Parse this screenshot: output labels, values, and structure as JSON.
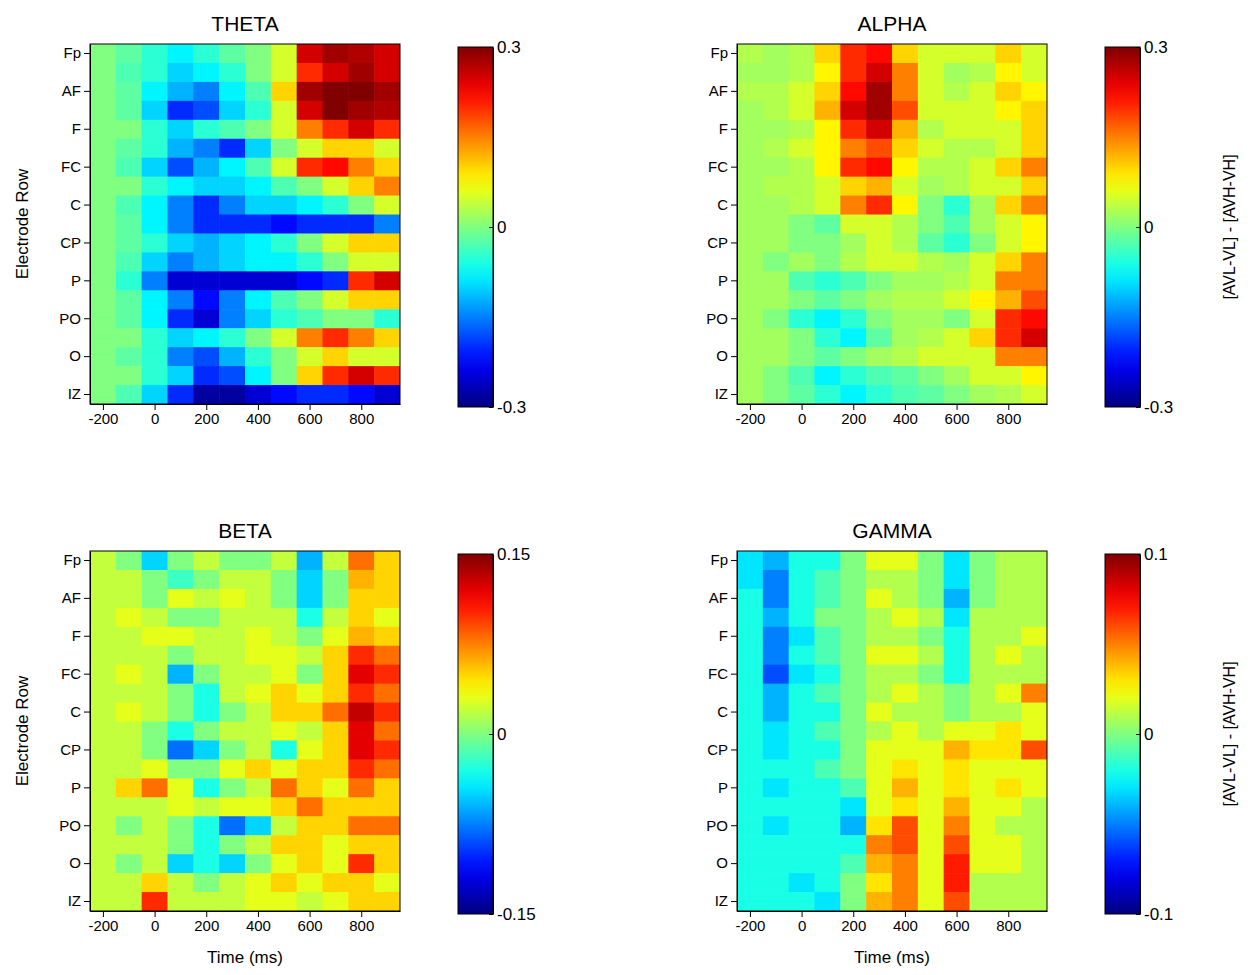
{
  "chart_data": [
    {
      "type": "heatmap",
      "title": "THETA",
      "ylabel": "Electrode Row",
      "x": [
        -200,
        -100,
        0,
        100,
        200,
        300,
        400,
        500,
        600,
        700,
        800,
        900
      ],
      "y": [
        "Fp",
        null,
        "AF",
        null,
        "F",
        null,
        "FC",
        null,
        "C",
        null,
        "CP",
        null,
        "P",
        null,
        "PO",
        null,
        "O",
        null,
        "IZ"
      ],
      "xlim": [
        -250,
        950
      ],
      "xticks": [
        -200,
        0,
        200,
        400,
        600,
        800
      ],
      "color_range": [
        -0.3,
        0.3
      ],
      "color_ticks": [
        -0.3,
        0,
        0.3
      ],
      "cells": [
        [
          0,
          -0.02,
          -0.05,
          -0.08,
          -0.05,
          -0.02,
          0,
          0.05,
          0.25,
          0.28,
          0.27,
          0.25
        ],
        [
          0,
          -0.03,
          -0.05,
          -0.1,
          -0.08,
          -0.05,
          0,
          0.05,
          0.2,
          0.25,
          0.28,
          0.25
        ],
        [
          0,
          -0.02,
          -0.08,
          -0.12,
          -0.15,
          -0.08,
          -0.03,
          0.1,
          0.28,
          0.3,
          0.3,
          0.28
        ],
        [
          0,
          -0.02,
          -0.1,
          -0.2,
          -0.18,
          -0.1,
          -0.05,
          0.05,
          0.25,
          0.3,
          0.28,
          0.27
        ],
        [
          0,
          0,
          -0.05,
          -0.1,
          -0.05,
          -0.03,
          0,
          0.05,
          0.15,
          0.2,
          0.25,
          0.2
        ],
        [
          0,
          -0.02,
          -0.05,
          -0.12,
          -0.15,
          -0.2,
          -0.1,
          0,
          0.05,
          0.1,
          0.1,
          0.05
        ],
        [
          0,
          -0.03,
          -0.1,
          -0.18,
          -0.12,
          -0.08,
          -0.03,
          0.05,
          0.2,
          0.22,
          0.15,
          0.1
        ],
        [
          0,
          0,
          -0.05,
          -0.08,
          -0.1,
          -0.1,
          -0.08,
          -0.03,
          0,
          0.05,
          0.1,
          0.15
        ],
        [
          0,
          -0.03,
          -0.08,
          -0.15,
          -0.2,
          -0.15,
          -0.1,
          -0.1,
          -0.08,
          -0.05,
          0,
          0.05
        ],
        [
          0,
          -0.02,
          -0.08,
          -0.15,
          -0.2,
          -0.2,
          -0.2,
          -0.22,
          -0.2,
          -0.2,
          -0.2,
          -0.15
        ],
        [
          0,
          -0.02,
          -0.05,
          -0.1,
          -0.12,
          -0.1,
          -0.08,
          -0.05,
          0,
          0.05,
          0.1,
          0.1
        ],
        [
          0,
          -0.03,
          -0.1,
          -0.15,
          -0.12,
          -0.1,
          -0.08,
          -0.08,
          -0.05,
          0,
          0.05,
          0.05
        ],
        [
          0,
          -0.05,
          -0.15,
          -0.25,
          -0.25,
          -0.25,
          -0.25,
          -0.25,
          -0.22,
          -0.2,
          0.2,
          0.25
        ],
        [
          0,
          -0.02,
          -0.08,
          -0.15,
          -0.22,
          -0.15,
          -0.08,
          -0.03,
          0,
          0.05,
          0.1,
          0.1
        ],
        [
          0,
          -0.02,
          -0.08,
          -0.2,
          -0.25,
          -0.15,
          -0.1,
          -0.05,
          -0.03,
          0,
          0,
          -0.05
        ],
        [
          0,
          0,
          -0.05,
          -0.1,
          -0.08,
          -0.05,
          0,
          0.05,
          0.15,
          0.2,
          0.15,
          0.1
        ],
        [
          0,
          -0.02,
          -0.05,
          -0.15,
          -0.18,
          -0.12,
          -0.05,
          0,
          0.05,
          0.1,
          0.05,
          0.05
        ],
        [
          0,
          0,
          -0.05,
          -0.1,
          -0.2,
          -0.18,
          -0.08,
          0,
          0.1,
          0.2,
          0.25,
          0.2
        ],
        [
          0,
          -0.03,
          -0.1,
          -0.2,
          -0.28,
          -0.28,
          -0.25,
          -0.22,
          -0.2,
          -0.2,
          -0.22,
          -0.25
        ]
      ]
    },
    {
      "type": "heatmap",
      "title": "ALPHA",
      "colorbar_label": "[AVL-VL] - [AVH-VH]",
      "x": [
        -200,
        -100,
        0,
        100,
        200,
        300,
        400,
        500,
        600,
        700,
        800,
        900
      ],
      "y": [
        "Fp",
        null,
        "AF",
        null,
        "F",
        null,
        "FC",
        null,
        "C",
        null,
        "CP",
        null,
        "P",
        null,
        "PO",
        null,
        "O",
        null,
        "IZ"
      ],
      "xlim": [
        -250,
        950
      ],
      "xticks": [
        -200,
        0,
        200,
        400,
        600,
        800
      ],
      "color_range": [
        -0.3,
        0.3
      ],
      "color_ticks": [
        -0.3,
        0,
        0.3
      ],
      "cells": [
        [
          0.03,
          0.02,
          0.03,
          0.1,
          0.2,
          0.22,
          0.1,
          0.05,
          0.05,
          0.05,
          0.1,
          0.05
        ],
        [
          0.02,
          0.02,
          0.03,
          0.08,
          0.2,
          0.25,
          0.15,
          0.05,
          0.02,
          0.03,
          0.08,
          0.05
        ],
        [
          0.03,
          0.03,
          0.05,
          0.1,
          0.22,
          0.28,
          0.15,
          0.05,
          0.03,
          0.05,
          0.1,
          0.08
        ],
        [
          0.02,
          0.03,
          0.05,
          0.12,
          0.25,
          0.28,
          0.18,
          0.05,
          0.05,
          0.05,
          0.08,
          0.1
        ],
        [
          0.02,
          0.02,
          0.03,
          0.08,
          0.2,
          0.25,
          0.12,
          0.03,
          0.05,
          0.05,
          0.05,
          0.1
        ],
        [
          0.02,
          0.03,
          0.05,
          0.08,
          0.15,
          0.18,
          0.1,
          0.05,
          0.03,
          0.03,
          0.05,
          0.1
        ],
        [
          0.02,
          0.02,
          0.03,
          0.08,
          0.2,
          0.22,
          0.08,
          0.03,
          0.03,
          0.05,
          0.1,
          0.15
        ],
        [
          0.02,
          0.03,
          0.03,
          0.05,
          0.1,
          0.12,
          0.05,
          0.02,
          0.03,
          0.05,
          0.05,
          0.1
        ],
        [
          0.02,
          0.02,
          0.03,
          0.05,
          0.15,
          0.2,
          0.08,
          0,
          -0.05,
          0.02,
          0.1,
          0.15
        ],
        [
          0.02,
          0.02,
          0,
          -0.02,
          0.05,
          0.05,
          0.03,
          0,
          -0.03,
          0.02,
          0.05,
          0.08
        ],
        [
          0.02,
          0.02,
          0,
          0,
          0.02,
          0.05,
          0.03,
          -0.02,
          -0.05,
          0,
          0.05,
          0.08
        ],
        [
          0.02,
          0,
          0.02,
          0,
          0.03,
          0.05,
          0.05,
          0.03,
          0.02,
          0.05,
          0.1,
          0.15
        ],
        [
          0.02,
          0.02,
          -0.03,
          -0.05,
          -0.03,
          0,
          0.02,
          0.02,
          0.03,
          0.05,
          0.15,
          0.15
        ],
        [
          0.02,
          0.02,
          0,
          -0.02,
          0,
          0.02,
          0.03,
          0.03,
          0.05,
          0.08,
          0.12,
          0.18
        ],
        [
          0.02,
          0,
          -0.05,
          -0.08,
          -0.05,
          0,
          0.02,
          0.02,
          0,
          0.05,
          0.2,
          0.22
        ],
        [
          0.02,
          0.02,
          0,
          -0.05,
          -0.08,
          -0.02,
          0.02,
          0.03,
          0.05,
          0.1,
          0.2,
          0.25
        ],
        [
          0.02,
          0.02,
          0,
          -0.02,
          0,
          0.02,
          0.03,
          0.05,
          0.05,
          0.05,
          0.15,
          0.15
        ],
        [
          0.02,
          0,
          -0.03,
          -0.08,
          -0.05,
          -0.03,
          -0.02,
          0,
          0.02,
          0.05,
          0.05,
          0.08
        ],
        [
          0.02,
          0,
          -0.02,
          -0.05,
          -0.08,
          -0.05,
          -0.03,
          -0.02,
          0,
          0.02,
          0.03,
          0.05
        ]
      ]
    },
    {
      "type": "heatmap",
      "title": "BETA",
      "xlabel": "Time (ms)",
      "ylabel": "Electrode Row",
      "x": [
        -200,
        -100,
        0,
        100,
        200,
        300,
        400,
        500,
        600,
        700,
        800,
        900
      ],
      "y": [
        "Fp",
        null,
        "AF",
        null,
        "F",
        null,
        "FC",
        null,
        "C",
        null,
        "CP",
        null,
        "P",
        null,
        "PO",
        null,
        "O",
        null,
        "IZ"
      ],
      "xlim": [
        -250,
        950
      ],
      "xticks": [
        -200,
        0,
        200,
        400,
        600,
        800
      ],
      "color_range": [
        -0.15,
        0.15
      ],
      "color_ticks": [
        -0.15,
        0,
        0.15
      ],
      "cells": [
        [
          0.02,
          0,
          -0.05,
          0,
          0.02,
          0,
          0,
          0.02,
          -0.06,
          0.02,
          0.08,
          0.05
        ],
        [
          0.02,
          0.02,
          0,
          -0.02,
          0,
          0.02,
          0.02,
          0,
          -0.05,
          0,
          0.06,
          0.05
        ],
        [
          0.02,
          0.02,
          0,
          0.03,
          0.02,
          0.03,
          0.02,
          0,
          -0.05,
          0,
          0.05,
          0.05
        ],
        [
          0.02,
          0.03,
          0.02,
          0,
          0,
          0.02,
          0.02,
          0.02,
          -0.03,
          0.02,
          0.05,
          0.03
        ],
        [
          0.02,
          0.02,
          0.03,
          0.03,
          0.02,
          0.02,
          0.03,
          0.02,
          0,
          0.03,
          0.06,
          0.05
        ],
        [
          0.02,
          0.02,
          0.02,
          0,
          0.02,
          0.02,
          0.03,
          0.03,
          0.02,
          0.05,
          0.1,
          0.08
        ],
        [
          0.02,
          0.03,
          0.02,
          -0.06,
          0,
          0.02,
          0.02,
          0.03,
          0,
          0.05,
          0.12,
          0.1
        ],
        [
          0.02,
          0.02,
          0.02,
          0,
          -0.03,
          0.02,
          0.03,
          0.05,
          0.03,
          0.05,
          0.1,
          0.08
        ],
        [
          0.02,
          0.03,
          0.02,
          0,
          -0.03,
          0,
          0.02,
          0.05,
          0.05,
          0.08,
          0.13,
          0.1
        ],
        [
          0.02,
          0.02,
          0,
          -0.03,
          0,
          0.02,
          0.02,
          0.03,
          0.02,
          0.05,
          0.12,
          0.08
        ],
        [
          0.02,
          0.02,
          0,
          -0.08,
          -0.05,
          0,
          0.02,
          -0.03,
          0.03,
          0.05,
          0.12,
          0.1
        ],
        [
          0.02,
          0.02,
          0.03,
          0,
          0,
          0.03,
          0.05,
          0.03,
          0.05,
          0.05,
          0.1,
          0.08
        ],
        [
          0.02,
          0.05,
          0.08,
          0.03,
          -0.03,
          0,
          0.02,
          0.08,
          0.05,
          0.03,
          0.08,
          0.05
        ],
        [
          0.02,
          0.02,
          0.02,
          0.03,
          0.02,
          0.03,
          0.03,
          0.05,
          0.08,
          0.05,
          0.05,
          0.05
        ],
        [
          0.02,
          0,
          0.02,
          0,
          -0.03,
          -0.08,
          -0.05,
          0.02,
          0.05,
          0.05,
          0.08,
          0.08
        ],
        [
          0.02,
          0.02,
          0.02,
          0,
          -0.03,
          0,
          0.02,
          0.05,
          0.05,
          0.03,
          0.05,
          0.05
        ],
        [
          0.02,
          0,
          0.02,
          -0.05,
          -0.03,
          -0.05,
          0,
          0.03,
          0.05,
          0.03,
          0.1,
          0.05
        ],
        [
          0.02,
          0.02,
          0.05,
          0.02,
          0,
          0.02,
          0.03,
          0.05,
          0.03,
          0.05,
          0.05,
          0.03
        ],
        [
          0.02,
          0.02,
          0.1,
          0.02,
          0.02,
          0.02,
          0.03,
          0.03,
          0.02,
          0.03,
          0.05,
          0.05
        ]
      ]
    },
    {
      "type": "heatmap",
      "title": "GAMMA",
      "xlabel": "Time (ms)",
      "colorbar_label": "[AVL-VL] - [AVH-VH]",
      "x": [
        -200,
        -100,
        0,
        100,
        200,
        300,
        400,
        500,
        600,
        700,
        800,
        900
      ],
      "y": [
        "Fp",
        null,
        "AF",
        null,
        "F",
        null,
        "FC",
        null,
        "C",
        null,
        "CP",
        null,
        "P",
        null,
        "PO",
        null,
        "O",
        null,
        "IZ"
      ],
      "xlim": [
        -250,
        950
      ],
      "xticks": [
        -200,
        0,
        200,
        400,
        600,
        800
      ],
      "color_range": [
        -0.1,
        0.1
      ],
      "color_ticks": [
        -0.1,
        0,
        0.1
      ],
      "cells": [
        [
          -0.03,
          -0.04,
          -0.02,
          -0.02,
          0,
          0.02,
          0.02,
          0,
          -0.03,
          0,
          0.01,
          0.01
        ],
        [
          -0.03,
          -0.05,
          -0.02,
          -0.01,
          0,
          0.01,
          0.01,
          0,
          -0.03,
          0,
          0.01,
          0.01
        ],
        [
          -0.02,
          -0.05,
          -0.02,
          -0.01,
          0,
          0.02,
          0.01,
          0,
          -0.04,
          0,
          0.01,
          0.01
        ],
        [
          -0.02,
          -0.04,
          -0.02,
          0,
          0,
          0.01,
          0.02,
          0.01,
          -0.03,
          0.01,
          0.01,
          0.01
        ],
        [
          -0.02,
          -0.05,
          -0.03,
          -0.01,
          0,
          0.01,
          0.01,
          0,
          -0.02,
          0.01,
          0.01,
          0.02
        ],
        [
          -0.02,
          -0.05,
          -0.02,
          -0.01,
          0,
          0.02,
          0.02,
          0.01,
          -0.02,
          0.01,
          0.02,
          0.01
        ],
        [
          -0.02,
          -0.06,
          -0.03,
          -0.02,
          0,
          0.01,
          0.01,
          0,
          -0.02,
          0.01,
          0.01,
          0.01
        ],
        [
          -0.02,
          -0.04,
          -0.02,
          -0.01,
          0,
          0.01,
          0.02,
          0.01,
          0,
          0.01,
          0.02,
          0.05
        ],
        [
          -0.02,
          -0.04,
          -0.02,
          -0.02,
          0,
          0.02,
          0.01,
          0.01,
          0,
          0.01,
          0.01,
          0.02
        ],
        [
          -0.02,
          -0.03,
          -0.02,
          -0.01,
          0,
          0.01,
          0.02,
          0.01,
          0.02,
          0.02,
          0.03,
          0.02
        ],
        [
          -0.02,
          -0.03,
          -0.02,
          -0.02,
          0,
          0.02,
          0.02,
          0.02,
          0.04,
          0.03,
          0.03,
          0.06
        ],
        [
          -0.02,
          -0.02,
          -0.02,
          -0.01,
          0,
          0.02,
          0.03,
          0.02,
          0.03,
          0.02,
          0.02,
          0.02
        ],
        [
          -0.02,
          -0.03,
          -0.02,
          -0.02,
          -0.01,
          0.02,
          0.04,
          0.02,
          0.03,
          0.02,
          0.03,
          0.02
        ],
        [
          -0.02,
          -0.02,
          -0.02,
          -0.02,
          -0.03,
          0.02,
          0.03,
          0.02,
          0.04,
          0.02,
          0.02,
          0.01
        ],
        [
          -0.02,
          -0.03,
          -0.02,
          -0.02,
          -0.04,
          0.03,
          0.06,
          0.02,
          0.05,
          0.02,
          0.01,
          0.01
        ],
        [
          -0.02,
          -0.02,
          -0.02,
          -0.02,
          -0.02,
          0.05,
          0.06,
          0.02,
          0.06,
          0.02,
          0.02,
          0.01
        ],
        [
          -0.02,
          -0.02,
          -0.02,
          -0.02,
          -0.01,
          0.04,
          0.05,
          0.02,
          0.07,
          0.02,
          0.02,
          0.01
        ],
        [
          -0.02,
          -0.02,
          -0.03,
          -0.02,
          0,
          0.03,
          0.05,
          0.02,
          0.07,
          0.01,
          0.01,
          0.01
        ],
        [
          -0.02,
          -0.02,
          -0.02,
          -0.03,
          0,
          0.04,
          0.05,
          0.02,
          0.06,
          0.01,
          0.01,
          0.01
        ]
      ]
    }
  ]
}
